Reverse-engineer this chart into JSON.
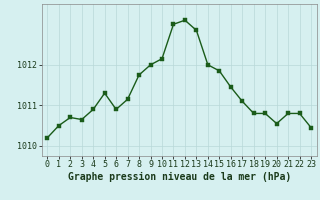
{
  "x": [
    0,
    1,
    2,
    3,
    4,
    5,
    6,
    7,
    8,
    9,
    10,
    11,
    12,
    13,
    14,
    15,
    16,
    17,
    18,
    19,
    20,
    21,
    22,
    23
  ],
  "y": [
    1010.2,
    1010.5,
    1010.7,
    1010.65,
    1010.9,
    1011.3,
    1010.9,
    1011.15,
    1011.75,
    1012.0,
    1012.15,
    1013.0,
    1013.1,
    1012.85,
    1012.0,
    1011.85,
    1011.45,
    1011.1,
    1010.8,
    1010.8,
    1010.55,
    1010.8,
    1010.8,
    1010.45
  ],
  "line_color": "#1a5c1a",
  "marker_color": "#1a5c1a",
  "bg_color": "#d6f0f0",
  "grid_color": "#b8d8d8",
  "xlabel": "Graphe pression niveau de la mer (hPa)",
  "xlabel_fontsize": 7,
  "ylabel_ticks": [
    1010,
    1011,
    1012
  ],
  "ylim": [
    1009.75,
    1013.5
  ],
  "xlim": [
    -0.5,
    23.5
  ],
  "xtick_labels": [
    "0",
    "1",
    "2",
    "3",
    "4",
    "5",
    "6",
    "7",
    "8",
    "9",
    "10",
    "11",
    "12",
    "13",
    "14",
    "15",
    "16",
    "17",
    "18",
    "19",
    "20",
    "21",
    "22",
    "23"
  ],
  "tick_fontsize": 6,
  "marker_size": 2.5,
  "line_width": 1.0
}
